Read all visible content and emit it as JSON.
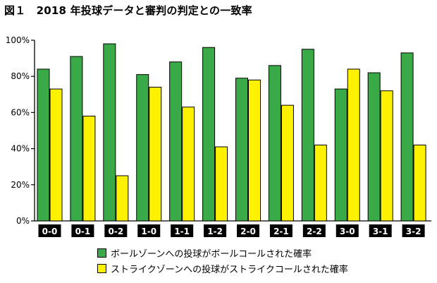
{
  "title": "図１　2018 年投球データと審判の判定との一致率",
  "chart_data": {
    "type": "bar",
    "categories": [
      "0-0",
      "0-1",
      "0-2",
      "1-0",
      "1-1",
      "1-2",
      "2-0",
      "2-1",
      "2-2",
      "3-0",
      "3-1",
      "3-2"
    ],
    "series": [
      {
        "name": "ボールゾーンへの投球がボールコールされた確率",
        "color": "#3aaa48",
        "values": [
          84,
          91,
          98,
          81,
          88,
          96,
          79,
          86,
          95,
          73,
          82,
          93
        ]
      },
      {
        "name": "ストライクゾーンへの投球がストライクコールされた確率",
        "color": "#fff200",
        "values": [
          73,
          58,
          25,
          74,
          63,
          41,
          78,
          64,
          42,
          84,
          72,
          42
        ]
      }
    ],
    "ylim": [
      0,
      100
    ],
    "yticks": [
      "0%",
      "20%",
      "40%",
      "60%",
      "80%",
      "100%"
    ],
    "grid": false,
    "legend_position": "bottom"
  }
}
